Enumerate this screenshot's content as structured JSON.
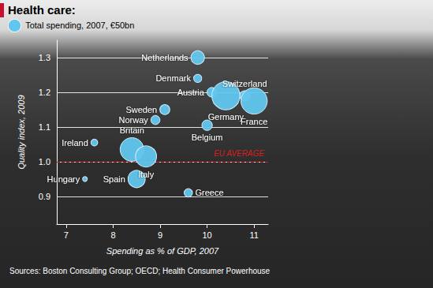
{
  "chart_data": {
    "type": "bubble",
    "title": "Health care:",
    "size_legend": {
      "label": "Total spending, 2007, €50bn",
      "size": 50
    },
    "x_label": "Spending as % of GDP, 2007",
    "y_label": "Quality index, 2009",
    "labels": [
      "Netherlands",
      "Denmark",
      "Switzerland",
      "Austria",
      "Germany",
      "France",
      "Sweden",
      "Norway",
      "Belgium",
      "Ireland",
      "Britain",
      "Italy",
      "Spain",
      "Hungary",
      "Greece"
    ],
    "x": [
      9.8,
      9.8,
      10.8,
      10.1,
      10.4,
      11.0,
      9.1,
      8.9,
      10.0,
      7.6,
      8.4,
      8.7,
      8.5,
      7.4,
      9.6
    ],
    "values": [
      1.3,
      1.24,
      1.19,
      1.2,
      1.19,
      1.175,
      1.15,
      1.12,
      1.105,
      1.055,
      1.035,
      1.015,
      0.95,
      0.95,
      0.91
    ],
    "sizes": [
      55,
      20,
      30,
      28,
      240,
      210,
      30,
      25,
      33,
      14,
      170,
      135,
      90,
      7,
      21
    ],
    "color": "#62c6ee",
    "xlim": [
      6.8,
      11.3
    ],
    "xticks": [
      7,
      8,
      9,
      10,
      11
    ],
    "ylim": [
      0.82,
      1.35
    ],
    "yticks": [
      0.9,
      {
        "value": 1,
        "label": "1.0"
      },
      1.1,
      1.2,
      1.3
    ],
    "grid": true,
    "reference_line": {
      "y": 1,
      "label": "EU AVERAGE",
      "color": "#d42020"
    },
    "sources": "Sources: Boston Consulting Group; OECD; Health Consumer Powerhouse"
  }
}
